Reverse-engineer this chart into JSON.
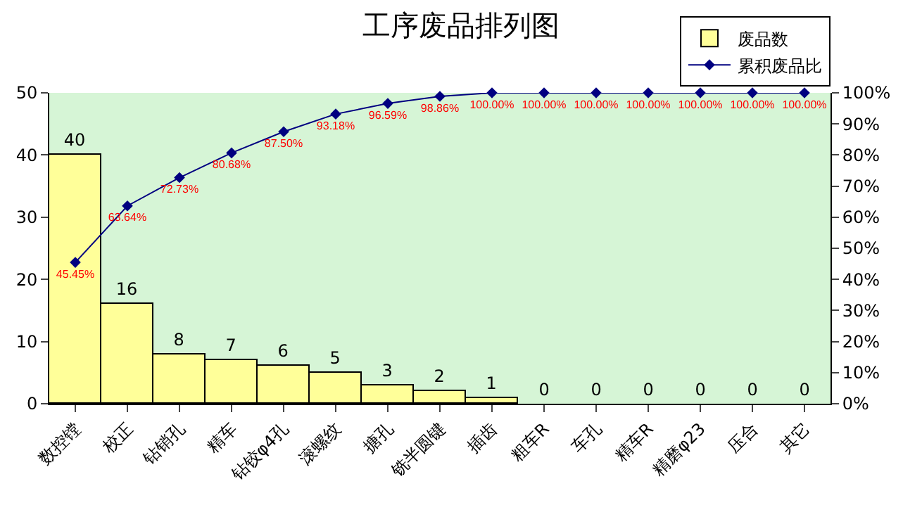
{
  "chart_data": {
    "type": "bar",
    "title": "工序废品排列图",
    "categories": [
      "数控镗",
      "校正",
      "钻销孔",
      "精车",
      "钻铰φ4孔",
      "滚螺纹",
      "搪孔",
      "铣半圆键",
      "插齿",
      "粗车R",
      "车孔",
      "精车R",
      "精磨φ23",
      "压合",
      "其它"
    ],
    "series": [
      {
        "name": "废品数",
        "color": "#ffff99",
        "values": [
          40,
          16,
          8,
          7,
          6,
          5,
          3,
          2,
          1,
          0,
          0,
          0,
          0,
          0,
          0
        ],
        "value_labels": [
          "40",
          "16",
          "8",
          "7",
          "6",
          "5",
          "3",
          "2",
          "1",
          "0",
          "0",
          "0",
          "0",
          "0",
          "0"
        ]
      },
      {
        "name": "累积废品比",
        "type": "line",
        "axis": "y2",
        "color": "#000080",
        "marker": "diamond",
        "values": [
          45.45,
          63.64,
          72.73,
          80.68,
          87.5,
          93.18,
          96.59,
          98.86,
          100,
          100,
          100,
          100,
          100,
          100,
          100
        ],
        "value_labels": [
          "45.45%",
          "63.64%",
          "72.73%",
          "80.68%",
          "87.50%",
          "93.18%",
          "96.59%",
          "98.86%",
          "100.00%",
          "100.00%",
          "100.00%",
          "100.00%",
          "100.00%",
          "100.00%",
          "100.00%"
        ]
      }
    ],
    "ylim": [
      0,
      50
    ],
    "yticks": [
      0,
      10,
      20,
      30,
      40,
      50
    ],
    "y2lim": [
      0,
      100
    ],
    "y2ticks": [
      {
        "value": 0,
        "label": "0%"
      },
      {
        "value": 10,
        "label": "10%"
      },
      {
        "value": 20,
        "label": "20%"
      },
      {
        "value": 30,
        "label": "30%"
      },
      {
        "value": 40,
        "label": "40%"
      },
      {
        "value": 50,
        "label": "50%"
      },
      {
        "value": 60,
        "label": "60%"
      },
      {
        "value": 70,
        "label": "70%"
      },
      {
        "value": 80,
        "label": "80%"
      },
      {
        "value": 90,
        "label": "90%"
      },
      {
        "value": 100,
        "label": "100%"
      }
    ],
    "grid": false,
    "legend": "top right"
  }
}
